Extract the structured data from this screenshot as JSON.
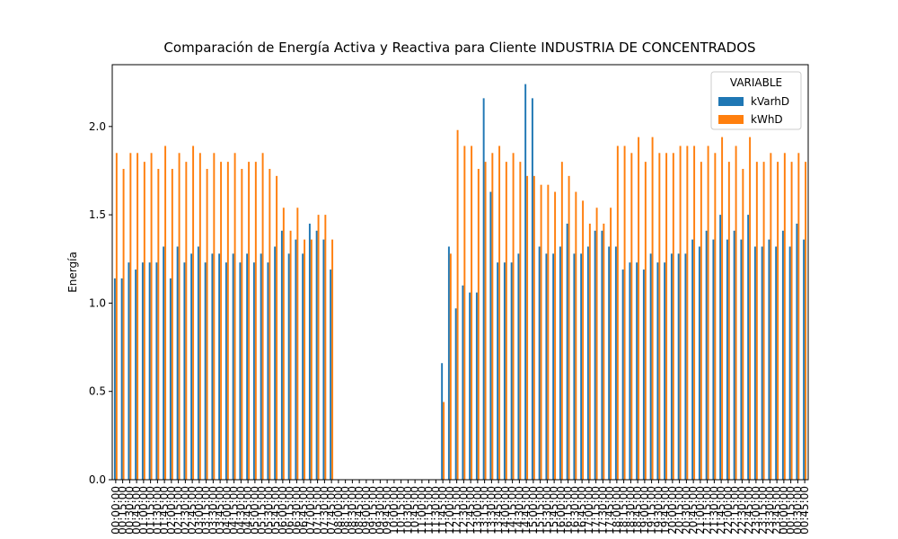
{
  "chart_data": {
    "type": "bar",
    "title": "Comparación de Energía Activa y Reactiva para Cliente INDUSTRIA DE CONCENTRADOS",
    "ylabel": "Energía",
    "legend_title": "VARIABLE",
    "legend": "upper right",
    "categories": [
      "00:00:00",
      "00:15:00",
      "00:30:00",
      "00:45:00",
      "01:00:00",
      "01:15:00",
      "01:30:00",
      "01:45:00",
      "02:00:00",
      "02:15:00",
      "02:30:00",
      "02:45:00",
      "03:00:00",
      "03:15:00",
      "03:30:00",
      "03:45:00",
      "04:00:00",
      "04:15:00",
      "04:30:00",
      "04:45:00",
      "05:00:00",
      "05:15:00",
      "05:30:00",
      "05:45:00",
      "06:00:00",
      "06:15:00",
      "06:30:00",
      "06:45:00",
      "07:00:00",
      "07:15:00",
      "07:30:00",
      "07:45:00",
      "08:00:00",
      "08:15:00",
      "08:30:00",
      "08:45:00",
      "09:00:00",
      "09:15:00",
      "09:30:00",
      "09:45:00",
      "10:00:00",
      "10:15:00",
      "10:30:00",
      "10:45:00",
      "11:00:00",
      "11:15:00",
      "11:30:00",
      "11:45:00",
      "12:00:00",
      "12:15:00",
      "12:30:00",
      "12:45:00",
      "13:00:00",
      "13:15:00",
      "13:30:00",
      "13:45:00",
      "14:00:00",
      "14:15:00",
      "14:30:00",
      "14:45:00",
      "15:00:00",
      "15:15:00",
      "15:30:00",
      "15:45:00",
      "16:00:00",
      "16:15:00",
      "16:30:00",
      "16:45:00",
      "17:00:00",
      "17:15:00",
      "17:30:00",
      "17:45:00",
      "18:00:00",
      "18:15:00",
      "18:30:00",
      "18:45:00",
      "19:00:00",
      "19:15:00",
      "19:30:00",
      "19:45:00",
      "20:00:00",
      "20:15:00",
      "20:30:00",
      "20:45:00",
      "21:00:00",
      "21:15:00",
      "21:30:00",
      "21:45:00",
      "22:00:00",
      "22:15:00",
      "22:30:00",
      "22:45:00",
      "23:00:00",
      "23:15:00",
      "23:30:00",
      "23:45:00",
      "00:00:00",
      "00:15:00",
      "00:30:00",
      "00:45:00"
    ],
    "series": [
      {
        "name": "kVarhD",
        "color": "#1f77b4",
        "values": [
          1.14,
          1.14,
          1.23,
          1.19,
          1.23,
          1.23,
          1.23,
          1.32,
          1.14,
          1.32,
          1.23,
          1.28,
          1.32,
          1.23,
          1.28,
          1.28,
          1.23,
          1.28,
          1.23,
          1.28,
          1.23,
          1.28,
          1.23,
          1.32,
          1.41,
          1.28,
          1.36,
          1.28,
          1.45,
          1.41,
          1.36,
          1.19,
          0,
          0,
          0,
          0,
          0,
          0,
          0,
          0,
          0,
          0,
          0,
          0,
          0,
          0,
          0,
          0.66,
          1.32,
          0.97,
          1.1,
          1.06,
          1.06,
          2.16,
          1.63,
          1.23,
          1.23,
          1.23,
          1.28,
          2.24,
          2.16,
          1.32,
          1.28,
          1.28,
          1.32,
          1.45,
          1.28,
          1.28,
          1.32,
          1.41,
          1.41,
          1.32,
          1.32,
          1.19,
          1.23,
          1.23,
          1.19,
          1.28,
          1.23,
          1.23,
          1.28,
          1.28,
          1.28,
          1.36,
          1.32,
          1.41,
          1.36,
          1.5,
          1.36,
          1.41,
          1.36,
          1.5,
          1.32,
          1.32,
          1.36,
          1.32,
          1.41,
          1.32,
          1.45,
          1.36
        ]
      },
      {
        "name": "kWhD",
        "color": "#ff7f0e",
        "values": [
          1.85,
          1.76,
          1.85,
          1.85,
          1.8,
          1.85,
          1.76,
          1.89,
          1.76,
          1.85,
          1.8,
          1.89,
          1.85,
          1.76,
          1.85,
          1.8,
          1.8,
          1.85,
          1.76,
          1.8,
          1.8,
          1.85,
          1.76,
          1.72,
          1.54,
          1.41,
          1.54,
          1.36,
          1.36,
          1.5,
          1.5,
          1.36,
          0,
          0,
          0,
          0,
          0,
          0,
          0,
          0,
          0,
          0,
          0,
          0,
          0,
          0,
          0,
          0.44,
          1.28,
          1.98,
          1.89,
          1.89,
          1.76,
          1.8,
          1.85,
          1.89,
          1.8,
          1.85,
          1.8,
          1.72,
          1.72,
          1.67,
          1.67,
          1.63,
          1.8,
          1.72,
          1.63,
          1.58,
          1.45,
          1.54,
          1.45,
          1.54,
          1.89,
          1.89,
          1.85,
          1.94,
          1.8,
          1.94,
          1.85,
          1.85,
          1.85,
          1.89,
          1.89,
          1.89,
          1.8,
          1.89,
          1.85,
          1.94,
          1.8,
          1.89,
          1.76,
          1.94,
          1.8,
          1.8,
          1.85,
          1.8,
          1.85,
          1.8,
          1.85,
          1.8
        ]
      }
    ],
    "ylim": [
      0,
      2.35
    ],
    "yticks": [
      {
        "value": 0,
        "label": "0.0"
      },
      {
        "value": 0.5,
        "label": "0.5"
      },
      {
        "value": 1,
        "label": "1.0"
      },
      {
        "value": 1.5,
        "label": "1.5"
      },
      {
        "value": 2,
        "label": "2.0"
      }
    ]
  }
}
